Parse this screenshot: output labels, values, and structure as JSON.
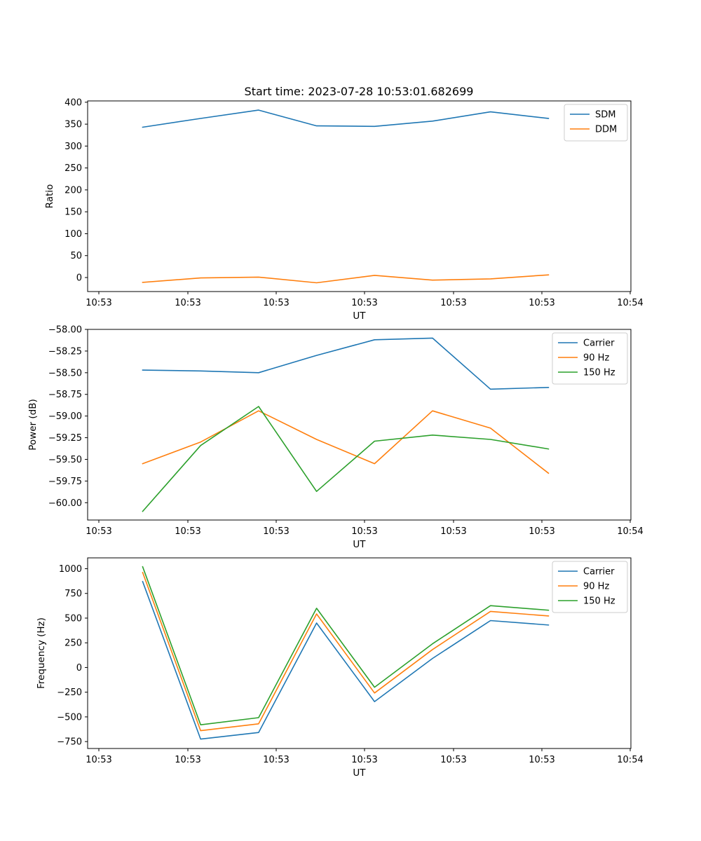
{
  "chart_data": [
    {
      "type": "line",
      "title": "Start time: 2023-07-28 10:53:01.682699",
      "xlabel": "UT",
      "ylabel": "Ratio",
      "x_tick_labels": [
        "10:53",
        "10:53",
        "10:53",
        "10:53",
        "10:53",
        "10:53",
        "10:54"
      ],
      "y_ticks": [
        0,
        50,
        100,
        150,
        200,
        250,
        300,
        350,
        400
      ],
      "y_tick_labels": [
        "0",
        "50",
        "100",
        "150",
        "200",
        "250",
        "300",
        "350",
        "400"
      ],
      "ylim": [
        -32,
        403
      ],
      "x_index": [
        0,
        1,
        2,
        3,
        4,
        5,
        6,
        7
      ],
      "legend": "upper-right",
      "series": [
        {
          "name": "SDM",
          "color": "#1f77b4",
          "values": [
            343,
            363,
            382,
            346,
            345,
            357,
            378,
            363
          ]
        },
        {
          "name": "DDM",
          "color": "#ff7f0e",
          "values": [
            -11,
            -1,
            1,
            -12,
            5,
            -6,
            -3,
            6
          ]
        }
      ]
    },
    {
      "type": "line",
      "title": "",
      "xlabel": "UT",
      "ylabel": "Power (dB)",
      "x_tick_labels": [
        "10:53",
        "10:53",
        "10:53",
        "10:53",
        "10:53",
        "10:53",
        "10:54"
      ],
      "y_ticks": [
        -60.0,
        -59.75,
        -59.5,
        -59.25,
        -59.0,
        -58.75,
        -58.5,
        -58.25,
        -58.0
      ],
      "y_tick_labels": [
        "−60.00",
        "−59.75",
        "−59.50",
        "−59.25",
        "−59.00",
        "−58.75",
        "−58.50",
        "−58.25",
        "−58.00"
      ],
      "ylim": [
        -60.2,
        -58.0
      ],
      "x_index": [
        0,
        1,
        2,
        3,
        4,
        5,
        6,
        7
      ],
      "legend": "upper-right",
      "series": [
        {
          "name": "Carrier",
          "color": "#1f77b4",
          "values": [
            -58.47,
            -58.48,
            -58.5,
            -58.3,
            -58.12,
            -58.1,
            -58.69,
            -58.67
          ]
        },
        {
          "name": "90 Hz",
          "color": "#ff7f0e",
          "values": [
            -59.55,
            -59.3,
            -58.94,
            -59.27,
            -59.55,
            -58.94,
            -59.14,
            -59.66
          ]
        },
        {
          "name": "150 Hz",
          "color": "#2ca02c",
          "values": [
            -60.1,
            -59.34,
            -58.89,
            -59.87,
            -59.29,
            -59.22,
            -59.27,
            -59.38
          ]
        }
      ]
    },
    {
      "type": "line",
      "title": "",
      "xlabel": "UT",
      "ylabel": "Frequency (Hz)",
      "x_tick_labels": [
        "10:53",
        "10:53",
        "10:53",
        "10:53",
        "10:53",
        "10:53",
        "10:54"
      ],
      "y_ticks": [
        -750,
        -500,
        -250,
        0,
        250,
        500,
        750,
        1000
      ],
      "y_tick_labels": [
        "−750",
        "−500",
        "−250",
        "0",
        "250",
        "500",
        "750",
        "1000"
      ],
      "ylim": [
        -820,
        1110
      ],
      "x_index": [
        0,
        1,
        2,
        3,
        4,
        5,
        6,
        7
      ],
      "legend": "upper-right",
      "series": [
        {
          "name": "Carrier",
          "color": "#1f77b4",
          "values": [
            870,
            -725,
            -658,
            450,
            -345,
            92,
            475,
            430
          ]
        },
        {
          "name": "90 Hz",
          "color": "#ff7f0e",
          "values": [
            962,
            -640,
            -570,
            542,
            -258,
            182,
            568,
            522
          ]
        },
        {
          "name": "150 Hz",
          "color": "#2ca02c",
          "values": [
            1020,
            -580,
            -508,
            600,
            -200,
            240,
            626,
            580
          ]
        }
      ]
    }
  ]
}
